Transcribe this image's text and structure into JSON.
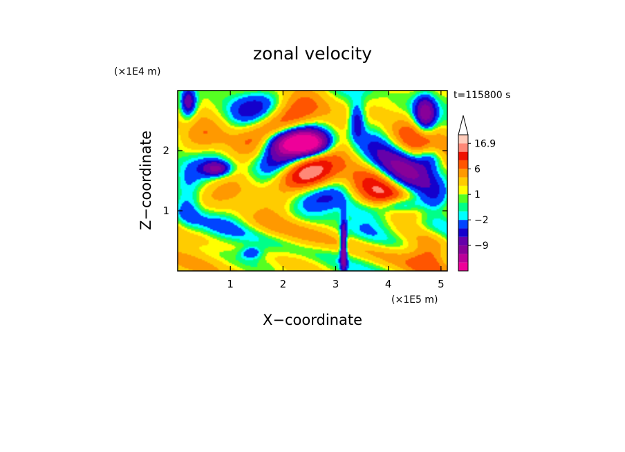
{
  "chart_data": {
    "type": "heatmap",
    "title": "zonal velocity",
    "xlabel": "X−coordinate",
    "ylabel": "Z−coordinate",
    "x_unit": "(×1E5 m)",
    "y_unit": "(×1E4 m)",
    "time_label": "t=115800 s",
    "xlim": [
      0,
      5.12
    ],
    "ylim": [
      0,
      3.0
    ],
    "x_ticks": [
      1,
      2,
      3,
      4,
      5
    ],
    "y_ticks": [
      1,
      2
    ],
    "colorbar": {
      "extend": "max",
      "levels": [
        -16,
        -12,
        -9,
        -6,
        -4,
        -2,
        -1,
        0,
        1,
        2,
        4,
        6,
        9,
        12,
        16.9
      ],
      "colors": [
        "#ee0099",
        "#bb0099",
        "#880099",
        "#6600aa",
        "#1400cc",
        "#0044ff",
        "#00ffff",
        "#00ff88",
        "#55ff22",
        "#ffff00",
        "#ffcc00",
        "#ff9900",
        "#ff5500",
        "#ee1100",
        "#ff8877",
        "#ffccbb"
      ],
      "labels": [
        {
          "value": -9,
          "text": "−9"
        },
        {
          "value": -2,
          "text": "−2"
        },
        {
          "value": 1,
          "text": "1"
        },
        {
          "value": 6,
          "text": "6"
        },
        {
          "value": 16.9,
          "text": "16.9"
        }
      ]
    }
  }
}
